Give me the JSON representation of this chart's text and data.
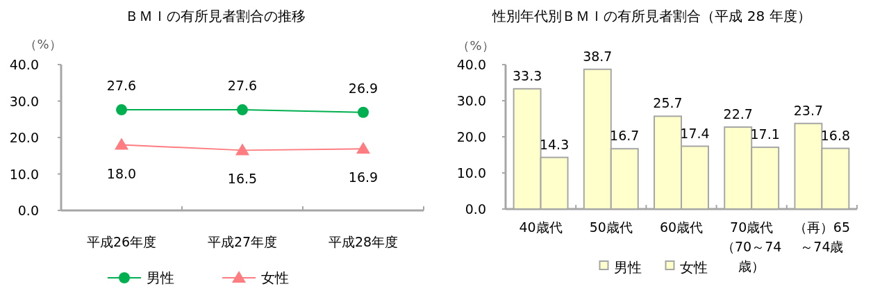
{
  "chart_data": [
    {
      "type": "line",
      "title": "ＢＭＩの有所見者割合の推移",
      "ylabel": "（%）",
      "categories": [
        "平成26年度",
        "平成27年度",
        "平成28年度"
      ],
      "series": [
        {
          "name": "男性",
          "color": "#00b050",
          "marker": "circle",
          "values": [
            27.6,
            27.6,
            26.9
          ],
          "value_labels": [
            "27.6",
            "27.6",
            "26.9"
          ]
        },
        {
          "name": "女性",
          "color": "#ff7c80",
          "marker": "triangle",
          "values": [
            18.0,
            16.5,
            16.9
          ],
          "value_labels": [
            "18.0",
            "16.5",
            "16.9"
          ]
        }
      ],
      "ylim": [
        0,
        40
      ],
      "yticks": [
        {
          "value": 0,
          "label": "0.0"
        },
        {
          "value": 10,
          "label": "10.0"
        },
        {
          "value": 20,
          "label": "20.0"
        },
        {
          "value": 30,
          "label": "30.0"
        },
        {
          "value": 40,
          "label": "40.0"
        }
      ],
      "grid": false,
      "legend": "bottom"
    },
    {
      "type": "bar",
      "title": "性別年代別ＢＭＩの有所見者割合（平成 28 年度）",
      "ylabel": "（%）",
      "categories": [
        "40歳代",
        "50歳代",
        "60歳代",
        "70歳代（70～74歳）",
        "（再）65～74歳"
      ],
      "series": [
        {
          "name": "男性",
          "color": "#ffffcc",
          "values": [
            33.3,
            38.7,
            25.7,
            22.7,
            23.7
          ]
        },
        {
          "name": "女性",
          "color": "#ffffcc",
          "values": [
            14.3,
            16.7,
            17.4,
            17.1,
            16.8
          ]
        }
      ],
      "ylim": [
        0,
        40
      ],
      "yticks": [
        {
          "value": 0,
          "label": "0.0"
        },
        {
          "value": 10,
          "label": "10.0"
        },
        {
          "value": 20,
          "label": "20.0"
        },
        {
          "value": 30,
          "label": "30.0"
        },
        {
          "value": 40,
          "label": "40.0"
        }
      ],
      "data_labels": true,
      "grid": false,
      "legend": "bottom"
    }
  ]
}
